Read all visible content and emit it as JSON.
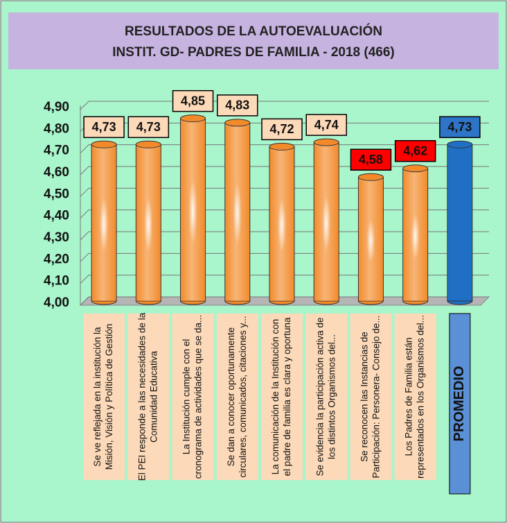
{
  "chart_data": {
    "type": "bar",
    "title": [
      "RESULTADOS DE LA AUTOEVALUACIÓN",
      "INSTIT. GD- PADRES DE FAMILIA - 2018  (466)"
    ],
    "categories": [
      [
        "Se ve reflejada en la institución la",
        "Misión, Visión y Política de Gestión"
      ],
      [
        "El PEI responde a las necesidades de la",
        "Comunidad Educativa"
      ],
      [
        "La Institución cumple con el",
        "cronograma de actividades que se da..."
      ],
      [
        "Se dan a conocer oportunamente",
        "circulares, comunicados, citaciones y..."
      ],
      [
        "La comunicación de la Institución con",
        "el padre de familia es clara y oportuna"
      ],
      [
        "Se evidencia la participación activa de",
        "los distintos Organismos del..."
      ],
      [
        "Se reconocen las Instancias de",
        "Participación: Personera- Consejo de..."
      ],
      [
        "Los Padres de Familia están",
        "representados en los Organismos del..."
      ],
      [
        "PROMEDIO"
      ]
    ],
    "values": [
      4.73,
      4.73,
      4.85,
      4.83,
      4.72,
      4.74,
      4.58,
      4.62,
      4.73
    ],
    "value_labels": [
      "4,73",
      "4,73",
      "4,85",
      "4,83",
      "4,72",
      "4,74",
      "4,58",
      "4,62",
      "4,73"
    ],
    "bar_colors": [
      "#f28a2a",
      "#f28a2a",
      "#f28a2a",
      "#f28a2a",
      "#f28a2a",
      "#f28a2a",
      "#f28a2a",
      "#f28a2a",
      "#1f6fc4"
    ],
    "label_colors": [
      "#fcd9b8",
      "#fcd9b8",
      "#fcd9b8",
      "#fcd9b8",
      "#fcd9b8",
      "#fcd9b8",
      "#ff0000",
      "#ff0000",
      "#2e75c8"
    ],
    "category_box_colors": [
      "#fcd9b8",
      "#fcd9b8",
      "#fcd9b8",
      "#fcd9b8",
      "#fcd9b8",
      "#fcd9b8",
      "#fcd9b8",
      "#fcd9b8",
      "#5b8fd6"
    ],
    "ylim": [
      4.0,
      4.9
    ],
    "yticks": [
      {
        "value": 4.0,
        "label": "4,00"
      },
      {
        "value": 4.1,
        "label": "4,10"
      },
      {
        "value": 4.2,
        "label": "4,20"
      },
      {
        "value": 4.3,
        "label": "4,30"
      },
      {
        "value": 4.4,
        "label": "4,40"
      },
      {
        "value": 4.5,
        "label": "4,50"
      },
      {
        "value": 4.6,
        "label": "4,60"
      },
      {
        "value": 4.7,
        "label": "4,70"
      },
      {
        "value": 4.8,
        "label": "4,80"
      },
      {
        "value": 4.9,
        "label": "4,90"
      }
    ],
    "grid": true
  }
}
